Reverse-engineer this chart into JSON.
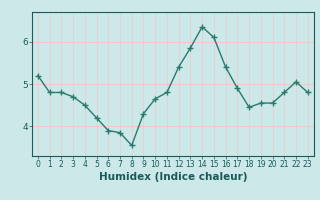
{
  "x": [
    0,
    1,
    2,
    3,
    4,
    5,
    6,
    7,
    8,
    9,
    10,
    11,
    12,
    13,
    14,
    15,
    16,
    17,
    18,
    19,
    20,
    21,
    22,
    23
  ],
  "y": [
    5.2,
    4.8,
    4.8,
    4.7,
    4.5,
    4.2,
    3.9,
    3.85,
    3.55,
    4.3,
    4.65,
    4.8,
    5.4,
    5.85,
    6.35,
    6.1,
    5.4,
    4.9,
    4.45,
    4.55,
    4.55,
    4.8,
    5.05,
    4.8
  ],
  "xlabel": "Humidex (Indice chaleur)",
  "background_color": "#cce8e8",
  "grid_major_color": "#f0c8c8",
  "grid_minor_color": "#d8e8e8",
  "line_color": "#2a7a6e",
  "text_color": "#1a5a5a",
  "ylim": [
    3.3,
    6.7
  ],
  "xlim": [
    -0.5,
    23.5
  ],
  "yticks": [
    4,
    5,
    6
  ],
  "xticks": [
    0,
    1,
    2,
    3,
    4,
    5,
    6,
    7,
    8,
    9,
    10,
    11,
    12,
    13,
    14,
    15,
    16,
    17,
    18,
    19,
    20,
    21,
    22,
    23
  ],
  "tick_fontsize": 5.5,
  "label_fontsize": 7.5
}
